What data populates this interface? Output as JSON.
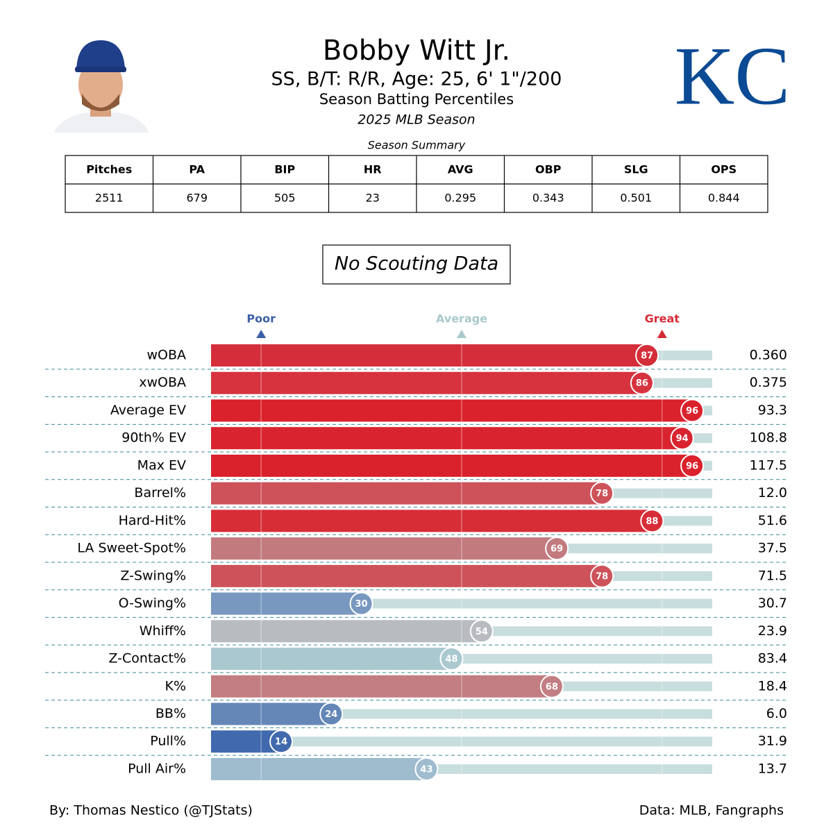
{
  "header": {
    "title": "Bobby Witt Jr.",
    "subtitle": "SS, B/T: R/R, Age: 25, 6' 1\"/200",
    "description": "Season Batting Percentiles",
    "season": "2025 MLB Season",
    "logo": "KC"
  },
  "table": {
    "caption": "Season Summary",
    "columns": [
      "Pitches",
      "PA",
      "BIP",
      "HR",
      "AVG",
      "OBP",
      "SLG",
      "OPS"
    ],
    "rows": [
      [
        2511,
        679,
        505,
        23,
        0.295,
        0.343,
        0.501,
        0.844
      ]
    ]
  },
  "scouting": "No Scouting Data",
  "chart_data": {
    "type": "bar",
    "orientation": "horizontal",
    "categories": [
      "wOBA",
      "xwOBA",
      "Average EV",
      "90th% EV",
      "Max EV",
      "Barrel%",
      "Hard-Hit%",
      "LA Sweet-Spot%",
      "Z-Swing%",
      "O-Swing%",
      "Whiff%",
      "Z-Contact%",
      "K%",
      "BB%",
      "Pull%",
      "Pull Air%"
    ],
    "values": [
      87,
      86,
      96,
      94,
      96,
      78,
      88,
      69,
      78,
      30,
      54,
      48,
      68,
      24,
      14,
      43
    ],
    "colors": [
      "#d42e3a",
      "#d6333f",
      "#da222c",
      "#d9242f",
      "#da222c",
      "#cd525a",
      "#d72d37",
      "#c27a7e",
      "#cd525a",
      "#7898c0",
      "#b8bcc0",
      "#aac8d0",
      "#c27e82",
      "#6487b8",
      "#4169ae",
      "#9ebcce"
    ],
    "stats": [
      "0.360",
      "0.375",
      "93.3",
      "108.8",
      "117.5",
      "12.0",
      "51.6",
      "37.5",
      "71.5",
      "30.7",
      "23.9",
      "83.4",
      "18.4",
      "6.0",
      "31.9",
      "13.7"
    ],
    "xlim": [
      0,
      100
    ],
    "markers": [
      {
        "value": 10,
        "label": "Poor",
        "color": "#3b5fa8"
      },
      {
        "value": 50,
        "label": "Average",
        "color": "#a9c9cc"
      },
      {
        "value": 90,
        "label": "Great",
        "color": "#d42a35"
      }
    ],
    "track_color": "#c8dede"
  },
  "footer": {
    "left": "By: Thomas Nestico (@TJStats)",
    "right": "Data: MLB, Fangraphs"
  }
}
